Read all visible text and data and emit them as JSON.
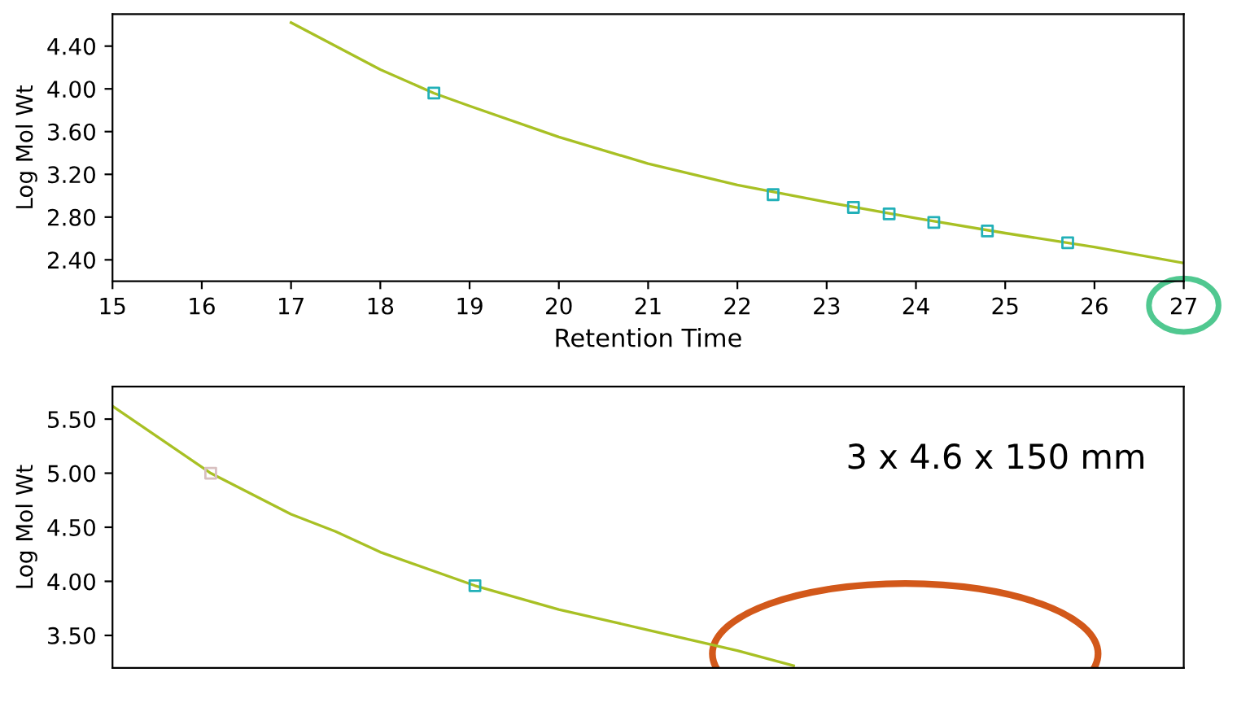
{
  "chart_data": [
    {
      "type": "line",
      "xlabel": "Retention Time",
      "ylabel": "Log Mol Wt",
      "xlim": [
        15,
        27
      ],
      "ylim": [
        2.2,
        4.7
      ],
      "xticks": [
        15,
        16,
        17,
        18,
        19,
        20,
        21,
        22,
        23,
        24,
        25,
        26,
        27
      ],
      "yticks": [
        {
          "value": 2.4,
          "label": "2.40"
        },
        {
          "value": 2.8,
          "label": "2.80"
        },
        {
          "value": 3.2,
          "label": "3.20"
        },
        {
          "value": 3.6,
          "label": "3.60"
        },
        {
          "value": 4.0,
          "label": "4.00"
        },
        {
          "value": 4.4,
          "label": "4.40"
        }
      ],
      "grid": false,
      "series": [
        {
          "color": "#a8c024",
          "x": [
            17,
            18,
            18.6,
            19,
            20,
            21,
            22,
            23,
            24,
            25,
            26,
            27
          ],
          "values": [
            4.62,
            4.18,
            3.96,
            3.84,
            3.55,
            3.3,
            3.1,
            2.94,
            2.79,
            2.65,
            2.52,
            2.37
          ]
        },
        {
          "type": "scatter",
          "marker": "square",
          "color": "#22b0b8",
          "x": [
            18.6,
            22.4,
            23.3,
            23.7,
            24.2,
            24.8,
            25.7
          ],
          "values": [
            3.96,
            3.01,
            2.89,
            2.83,
            2.75,
            2.67,
            2.56
          ]
        }
      ]
    },
    {
      "type": "line",
      "ylabel": "Log Mol Wt",
      "xlim": [
        15,
        27
      ],
      "ylim": [
        3.2,
        5.8
      ],
      "tick_labels": "y",
      "yticks": [
        {
          "value": 3.5,
          "label": "3.50"
        },
        {
          "value": 4.0,
          "label": "4.00"
        },
        {
          "value": 4.5,
          "label": "4.50"
        },
        {
          "value": 5.0,
          "label": "5.00"
        },
        {
          "value": 5.5,
          "label": "5.50"
        }
      ],
      "grid": false,
      "annotations": [
        "3 x 4.6 x 150 mm"
      ],
      "series": [
        {
          "color": "#a8c024",
          "x": [
            15,
            16.1,
            17,
            17.5,
            18,
            19.06,
            20,
            21,
            22,
            22.63
          ],
          "values": [
            5.62,
            5.0,
            4.62,
            4.46,
            4.27,
            3.96,
            3.74,
            3.55,
            3.36,
            3.22
          ]
        },
        {
          "type": "scatter",
          "marker": "square",
          "colors": [
            "#d8c0c0",
            "#22b0b8"
          ],
          "x": [
            16.1,
            19.06
          ],
          "values": [
            5.0,
            3.96
          ]
        }
      ]
    }
  ]
}
